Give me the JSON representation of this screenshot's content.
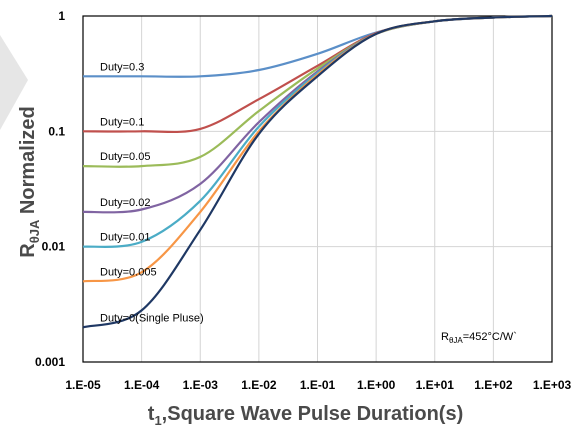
{
  "chart_data": {
    "type": "line",
    "x_scale": "log",
    "y_scale": "log",
    "xlim": [
      1e-05,
      1000
    ],
    "ylim": [
      0.001,
      1
    ],
    "grid": true,
    "xlabel": {
      "prefix": "t",
      "sub": "1",
      "rest": ",Square Wave Pulse Duration(s)"
    },
    "ylabel": {
      "prefix": "R",
      "sub": "θJA",
      "rest": " Normalized"
    },
    "x_tick_labels": [
      "1.E-05",
      "1.E-04",
      "1.E-03",
      "1.E-02",
      "1.E-01",
      "1.E+00",
      "1.E+01",
      "1.E+02",
      "1.E+03"
    ],
    "y_tick_labels": [
      "0.001",
      "0.01",
      "0.1",
      "1"
    ],
    "annotation": {
      "prefix": "R",
      "sub": "θJA",
      "rest": "=452°C/W`"
    },
    "series": [
      {
        "name": "Duty=0.3",
        "color": "#5b8fc8",
        "points": [
          [
            1e-05,
            0.3
          ],
          [
            0.0001,
            0.3
          ],
          [
            0.001,
            0.3
          ],
          [
            0.01,
            0.34
          ],
          [
            0.1,
            0.47
          ],
          [
            1,
            0.72
          ],
          [
            10,
            0.9
          ],
          [
            100,
            0.97
          ],
          [
            1000,
            1
          ]
        ]
      },
      {
        "name": "Duty=0.1",
        "color": "#c0504d",
        "points": [
          [
            1e-05,
            0.1
          ],
          [
            0.0001,
            0.1
          ],
          [
            0.001,
            0.105
          ],
          [
            0.01,
            0.19
          ],
          [
            0.1,
            0.37
          ],
          [
            1,
            0.71
          ],
          [
            10,
            0.9
          ],
          [
            100,
            0.97
          ],
          [
            1000,
            1
          ]
        ]
      },
      {
        "name": "Duty=0.05",
        "color": "#9bbb59",
        "points": [
          [
            1e-05,
            0.05
          ],
          [
            0.0001,
            0.05
          ],
          [
            0.001,
            0.06
          ],
          [
            0.01,
            0.15
          ],
          [
            0.1,
            0.35
          ],
          [
            1,
            0.7
          ],
          [
            10,
            0.9
          ],
          [
            100,
            0.97
          ],
          [
            1000,
            1
          ]
        ]
      },
      {
        "name": "Duty=0.02",
        "color": "#8064a2",
        "points": [
          [
            1e-05,
            0.02
          ],
          [
            0.0001,
            0.021
          ],
          [
            0.001,
            0.035
          ],
          [
            0.01,
            0.12
          ],
          [
            0.1,
            0.33
          ],
          [
            1,
            0.7
          ],
          [
            10,
            0.9
          ],
          [
            100,
            0.97
          ],
          [
            1000,
            1
          ]
        ]
      },
      {
        "name": "Duty=0.01",
        "color": "#4bacc6",
        "points": [
          [
            1e-05,
            0.01
          ],
          [
            0.0001,
            0.011
          ],
          [
            0.001,
            0.025
          ],
          [
            0.01,
            0.11
          ],
          [
            0.1,
            0.32
          ],
          [
            1,
            0.7
          ],
          [
            10,
            0.9
          ],
          [
            100,
            0.97
          ],
          [
            1000,
            1
          ]
        ]
      },
      {
        "name": "Duty=0.005",
        "color": "#f79646",
        "points": [
          [
            1e-05,
            0.005
          ],
          [
            0.0001,
            0.006
          ],
          [
            0.001,
            0.02
          ],
          [
            0.01,
            0.1
          ],
          [
            0.1,
            0.31
          ],
          [
            1,
            0.7
          ],
          [
            10,
            0.9
          ],
          [
            100,
            0.97
          ],
          [
            1000,
            1
          ]
        ]
      },
      {
        "name": "Duty=0(Single Pluse)",
        "color": "#1f3864",
        "points": [
          [
            1e-05,
            0.002
          ],
          [
            0.0001,
            0.0028
          ],
          [
            0.001,
            0.014
          ],
          [
            0.01,
            0.095
          ],
          [
            0.1,
            0.3
          ],
          [
            1,
            0.7
          ],
          [
            10,
            0.9
          ],
          [
            100,
            0.97
          ],
          [
            1000,
            1
          ]
        ]
      }
    ]
  }
}
